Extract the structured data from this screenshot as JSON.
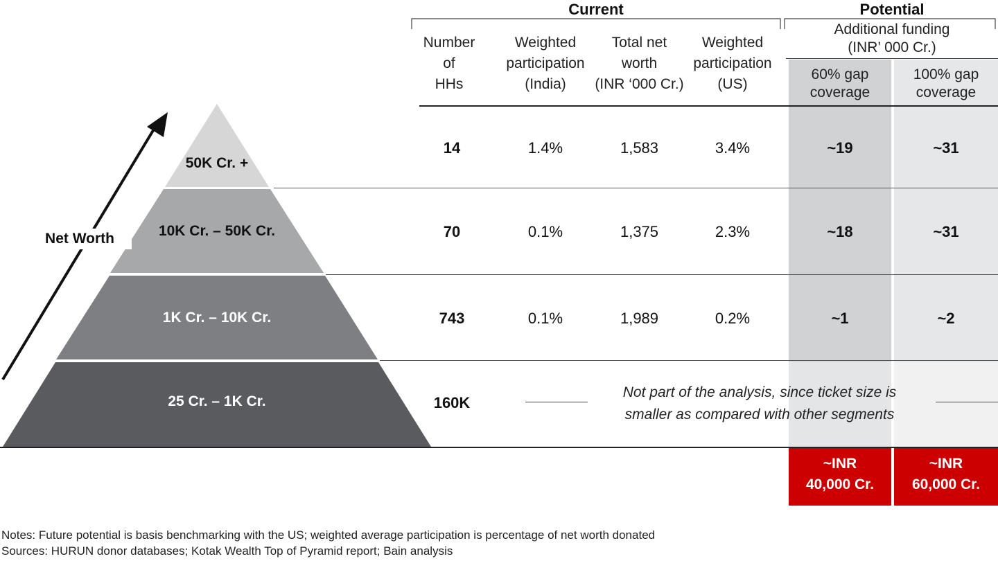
{
  "groups": {
    "current": "Current",
    "potential": "Potential"
  },
  "potential_subheader": "Additional funding\n(INR’ 000 Cr.)",
  "columns": {
    "num_hhs": "Number\nof\nHHs",
    "wp_india": "Weighted\nparticipation\n(India)",
    "net_worth": "Total net\nworth\n(INR ‘000 Cr.)",
    "wp_us": "Weighted\nparticipation\n(US)",
    "gap60": "60% gap\ncoverage",
    "gap100": "100% gap\ncoverage"
  },
  "axis_label": "Net Worth",
  "rows": [
    {
      "tier": "50K Cr. +",
      "num_hhs": "14",
      "wp_india": "1.4%",
      "net_worth": "1,583",
      "wp_us": "3.4%",
      "gap60": "~19",
      "gap100": "~31"
    },
    {
      "tier": "10K Cr. – 50K Cr.",
      "num_hhs": "70",
      "wp_india": "0.1%",
      "net_worth": "1,375",
      "wp_us": "2.3%",
      "gap60": "~18",
      "gap100": "~31"
    },
    {
      "tier": "1K Cr. – 10K Cr.",
      "num_hhs": "743",
      "wp_india": "0.1%",
      "net_worth": "1,989",
      "wp_us": "0.2%",
      "gap60": "~1",
      "gap100": "~2"
    },
    {
      "tier": "25 Cr. – 1K Cr.",
      "num_hhs": "160K"
    }
  ],
  "excluded_note": "Not part of the analysis, since ticket size is\nsmaller as compared with other segments",
  "totals": {
    "gap60": "~INR\n40,000 Cr.",
    "gap100": "~INR\n60,000 Cr."
  },
  "notes": "Notes: Future potential is basis benchmarking with the US; weighted average participation is percentage of net worth donated",
  "sources": "Sources: HURUN donor databases; Kotak Wealth Top of Pyramid report; Bain analysis",
  "colors": {
    "tier_top": "#d6d6d7",
    "tier_2": "#a7a8aa",
    "tier_3": "#7e7f82",
    "tier_bottom": "#5a5b5e",
    "gap60_band": "#d1d2d4",
    "gap100_band": "#e6e7e8",
    "totals_red": "#cc0000"
  }
}
